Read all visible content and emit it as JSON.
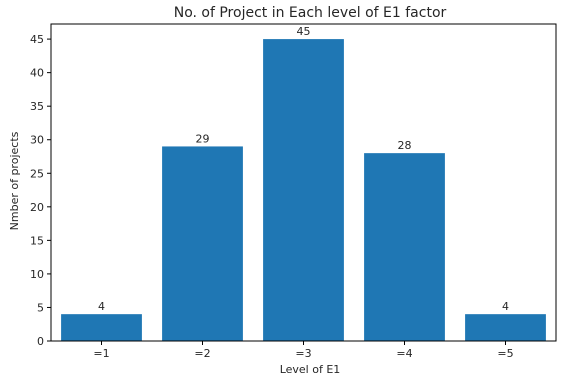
{
  "chart_data": {
    "type": "bar",
    "title": "No. of Project in Each level of E1 factor",
    "xlabel": "Level of E1",
    "ylabel": "Nmber of projects",
    "categories": [
      "=1",
      "=2",
      "=3",
      "=4",
      "=5"
    ],
    "values": [
      4,
      29,
      45,
      28,
      4
    ],
    "data_labels": [
      "4",
      "29",
      "45",
      "28",
      "4"
    ],
    "ylim": [
      0,
      47.25
    ],
    "yticks": [
      0,
      5,
      10,
      15,
      20,
      25,
      30,
      35,
      40,
      45
    ],
    "bar_color": "#1f77b4",
    "grid": false,
    "legend": "none"
  }
}
